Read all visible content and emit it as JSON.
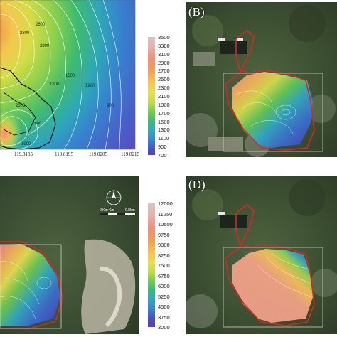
{
  "panels": {
    "a": {
      "label": "",
      "x_axis_ticks": [
        "119.8185",
        "119.8195",
        "119.8205",
        "119.8215"
      ],
      "contour_labels": [
        "2300",
        "2600",
        "2900",
        "1500",
        "1800",
        "1200",
        "900",
        "2300",
        "2600",
        "1900"
      ]
    },
    "b": {
      "label": "(B)"
    },
    "c": {
      "label": "",
      "scale_label_left": "0  Km  Km",
      "scale_label_right": "0.8km"
    },
    "d": {
      "label": "(D)"
    }
  },
  "legend_1": {
    "ticks": [
      "3500",
      "3300",
      "3100",
      "2900",
      "2700",
      "2500",
      "2300",
      "2100",
      "1900",
      "1700",
      "1500",
      "1300",
      "1100",
      "900",
      "700"
    ],
    "colors": {
      "high": "#d9c4c4",
      "mid": "#e8e050",
      "low": "#5a3cbd"
    }
  },
  "legend_2": {
    "ticks": [
      "12000",
      "11250",
      "10500",
      "9750",
      "9000",
      "8250",
      "7500",
      "6750",
      "6000",
      "5250",
      "4500",
      "3750",
      "3000"
    ],
    "colors": {
      "high": "#d9c4c4",
      "mid": "#e8e050",
      "low": "#5a3cbd"
    }
  },
  "colors": {
    "boundary": "#d62828",
    "satellite_base": "#3e4f33",
    "frame": "#dddddd"
  }
}
